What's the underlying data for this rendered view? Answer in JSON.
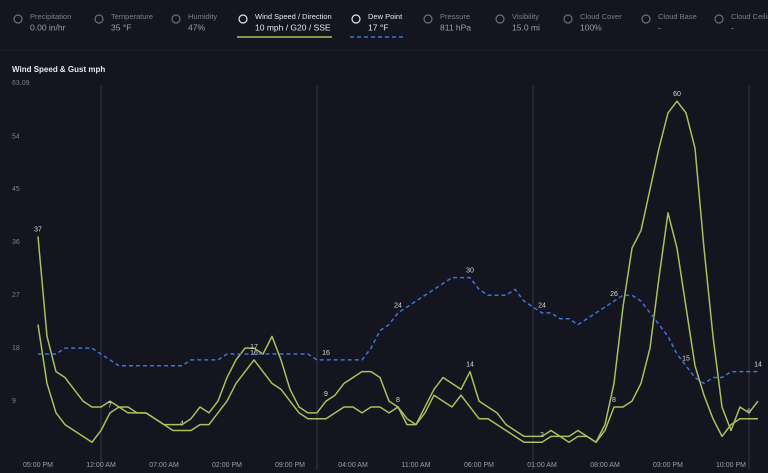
{
  "header": {
    "metrics": [
      {
        "label": "Precipitation",
        "value": "0.00 in/hr"
      },
      {
        "label": "Temperature",
        "value": "35 °F"
      },
      {
        "label": "Humidity",
        "value": "47%"
      },
      {
        "label": "Wind Speed / Direction",
        "value": "10 mph / G20 / SSE"
      },
      {
        "label": "Dew Point",
        "value": "17 °F"
      },
      {
        "label": "Pressure",
        "value": "811 hPa"
      },
      {
        "label": "Visibility",
        "value": "15.0 mi"
      },
      {
        "label": "Cloud Cover",
        "value": "100%"
      },
      {
        "label": "Cloud Base",
        "value": "-"
      },
      {
        "label": "Cloud Ceilin",
        "value": "-"
      }
    ]
  },
  "chart_data": {
    "type": "line",
    "title": "Wind Speed & Gust mph",
    "categories": [
      "05:00 PM",
      null,
      null,
      null,
      null,
      null,
      null,
      "12:00 AM",
      null,
      null,
      null,
      null,
      null,
      null,
      "07:00 AM",
      null,
      null,
      null,
      null,
      null,
      null,
      "02:00 PM",
      null,
      null,
      null,
      null,
      null,
      null,
      "09:00 PM",
      null,
      null,
      null,
      null,
      null,
      null,
      "04:00 AM",
      null,
      null,
      null,
      null,
      null,
      null,
      "11:00 AM",
      null,
      null,
      null,
      null,
      null,
      null,
      "06:00 PM",
      null,
      null,
      null,
      null,
      null,
      null,
      "01:00 AM",
      null,
      null,
      null,
      null,
      null,
      null,
      "08:00 AM",
      null,
      null,
      null,
      null,
      null,
      null,
      "03:00 PM",
      null,
      null,
      null,
      null,
      null,
      null,
      "10:00 PM",
      null,
      null,
      null
    ],
    "ylim": [
      0,
      63.09
    ],
    "yticks": [
      9,
      18,
      27,
      36,
      45,
      54,
      63.09
    ],
    "series": [
      {
        "name": "Wind Speed",
        "color": "#a8c25c",
        "dashed": false,
        "labeled": [
          8,
          16,
          24,
          40,
          56,
          64,
          79
        ],
        "values": [
          22,
          12,
          7,
          5,
          4,
          3,
          2,
          4,
          7,
          8,
          7,
          7,
          7,
          6,
          5,
          4,
          4,
          4,
          5,
          5,
          7,
          9,
          12,
          14,
          16,
          14,
          12,
          11,
          9,
          7,
          6,
          6,
          6,
          7,
          8,
          8,
          7,
          8,
          8,
          7,
          8,
          5,
          5,
          7,
          10,
          9,
          8,
          10,
          8,
          6,
          6,
          5,
          4,
          3,
          2,
          2,
          2,
          3,
          3,
          2,
          3,
          3,
          2,
          4,
          8,
          8,
          9,
          12,
          18,
          30,
          41,
          35,
          25,
          15,
          10,
          6,
          3,
          5,
          6,
          6,
          6
        ]
      },
      {
        "name": "Gust",
        "color": "#a8c25c",
        "dashed": false,
        "labeled": [
          0,
          32,
          48,
          71
        ],
        "values": [
          37,
          20,
          14,
          13,
          11,
          9,
          8,
          8,
          9,
          8,
          8,
          7,
          7,
          6,
          5,
          5,
          5,
          6,
          8,
          7,
          9,
          13,
          16,
          18,
          18,
          17,
          20,
          16,
          11,
          8,
          7,
          7,
          9,
          10,
          12,
          13,
          14,
          14,
          13,
          9,
          8,
          6,
          5,
          8,
          11,
          13,
          12,
          11,
          14,
          9,
          8,
          7,
          5,
          4,
          3,
          3,
          3,
          4,
          3,
          3,
          4,
          3,
          2,
          5,
          12,
          25,
          35,
          38,
          45,
          52,
          58,
          60,
          58,
          52,
          35,
          20,
          8,
          4,
          8,
          7,
          9
        ]
      },
      {
        "name": "Dew Point",
        "color": "#3f74d6",
        "dashed": true,
        "labeled": [
          24,
          32,
          40,
          48,
          56,
          64,
          72,
          80
        ],
        "values": [
          17,
          17,
          17,
          18,
          18,
          18,
          18,
          17,
          16,
          15,
          15,
          15,
          15,
          15,
          15,
          15,
          15,
          16,
          16,
          16,
          16,
          17,
          17,
          17,
          17,
          17,
          17,
          17,
          17,
          17,
          17,
          16,
          16,
          16,
          16,
          16,
          16,
          18,
          21,
          22,
          24,
          25,
          26,
          27,
          28,
          29,
          30,
          30,
          30,
          28,
          27,
          27,
          27,
          28,
          26,
          25,
          24,
          24,
          23,
          23,
          22,
          23,
          24,
          25,
          26,
          27,
          27,
          26,
          24,
          22,
          20,
          17,
          15,
          13,
          12,
          13,
          13,
          14,
          14,
          14,
          14
        ]
      }
    ]
  }
}
